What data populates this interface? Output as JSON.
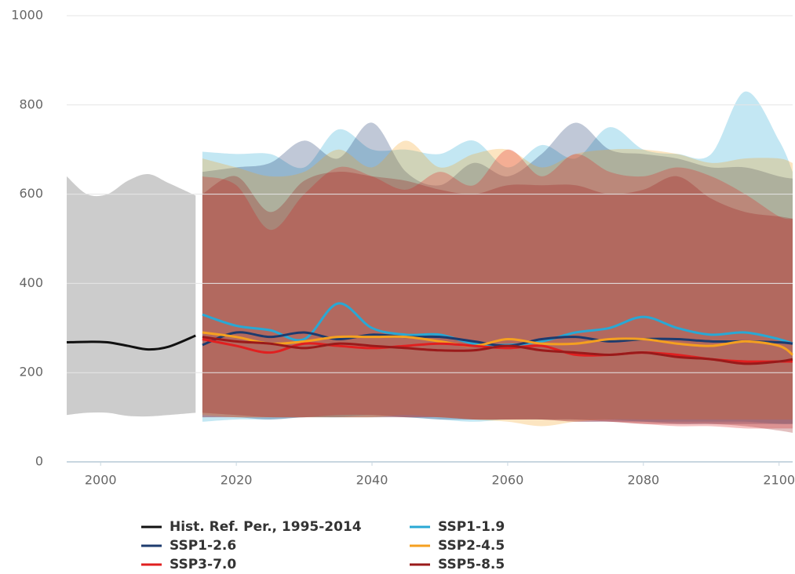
{
  "chart_data": {
    "type": "line",
    "xlim": [
      1995,
      2102
    ],
    "ylim": [
      0,
      1000
    ],
    "xticks": [
      2000,
      2020,
      2040,
      2060,
      2080,
      2100
    ],
    "yticks": [
      0,
      200,
      400,
      600,
      800,
      1000
    ],
    "grid": true,
    "legend": "bottom",
    "series": [
      {
        "name": "Hist. Ref. Per., 1995-2014",
        "color": "#111111",
        "band_color": "#b0b0b0",
        "x": [
          1995,
          1998,
          2001,
          2004,
          2007,
          2010,
          2014
        ],
        "values": [
          268,
          269,
          268,
          260,
          252,
          258,
          283
        ],
        "upper": [
          640,
          600,
          600,
          630,
          645,
          625,
          597
        ],
        "lower": [
          105,
          110,
          110,
          103,
          102,
          105,
          110
        ]
      },
      {
        "name": "SSP1-1.9",
        "color": "#29a8d4",
        "band_color": "#29a8d4",
        "x": [
          2015,
          2020,
          2025,
          2030,
          2035,
          2040,
          2045,
          2050,
          2055,
          2060,
          2065,
          2070,
          2075,
          2080,
          2085,
          2090,
          2095,
          2100,
          2102
        ],
        "values": [
          330,
          305,
          295,
          275,
          355,
          300,
          285,
          285,
          265,
          262,
          270,
          290,
          300,
          325,
          300,
          285,
          290,
          275,
          265
        ],
        "upper": [
          695,
          690,
          690,
          660,
          745,
          700,
          700,
          690,
          720,
          660,
          710,
          680,
          750,
          700,
          690,
          690,
          830,
          720,
          650
        ],
        "lower": [
          90,
          95,
          95,
          100,
          100,
          105,
          100,
          95,
          90,
          95,
          95,
          95,
          95,
          90,
          90,
          90,
          90,
          85,
          85
        ]
      },
      {
        "name": "SSP1-2.6",
        "color": "#1d3b6e",
        "band_color": "#1d3b6e",
        "x": [
          2015,
          2020,
          2025,
          2030,
          2035,
          2040,
          2045,
          2050,
          2055,
          2060,
          2065,
          2070,
          2075,
          2080,
          2085,
          2090,
          2095,
          2100,
          2102
        ],
        "values": [
          262,
          290,
          280,
          290,
          275,
          285,
          280,
          280,
          270,
          260,
          275,
          280,
          270,
          275,
          275,
          270,
          270,
          268,
          265
        ],
        "upper": [
          650,
          660,
          670,
          720,
          680,
          760,
          650,
          620,
          670,
          640,
          690,
          760,
          700,
          690,
          680,
          660,
          660,
          640,
          635
        ],
        "lower": [
          100,
          100,
          95,
          100,
          100,
          100,
          100,
          95,
          95,
          95,
          95,
          90,
          90,
          90,
          85,
          85,
          85,
          85,
          85
        ]
      },
      {
        "name": "SSP2-4.5",
        "color": "#f5a020",
        "band_color": "#f5a020",
        "x": [
          2015,
          2020,
          2025,
          2030,
          2035,
          2040,
          2045,
          2050,
          2055,
          2060,
          2065,
          2070,
          2075,
          2080,
          2085,
          2090,
          2095,
          2100,
          2102
        ],
        "values": [
          290,
          280,
          265,
          270,
          280,
          280,
          280,
          270,
          260,
          275,
          265,
          265,
          275,
          275,
          265,
          260,
          270,
          260,
          240
        ],
        "upper": [
          680,
          660,
          640,
          650,
          700,
          660,
          720,
          660,
          690,
          700,
          660,
          690,
          700,
          700,
          690,
          670,
          680,
          680,
          670
        ],
        "lower": [
          105,
          100,
          100,
          100,
          100,
          100,
          105,
          100,
          95,
          90,
          80,
          90,
          95,
          95,
          95,
          95,
          95,
          95,
          95
        ]
      },
      {
        "name": "SSP3-7.0",
        "color": "#e02020",
        "band_color": "#e02020",
        "x": [
          2015,
          2020,
          2025,
          2030,
          2035,
          2040,
          2045,
          2050,
          2055,
          2060,
          2065,
          2070,
          2075,
          2080,
          2085,
          2090,
          2095,
          2100,
          2102
        ],
        "values": [
          275,
          260,
          245,
          265,
          260,
          255,
          260,
          265,
          260,
          255,
          260,
          240,
          240,
          245,
          240,
          230,
          225,
          225,
          225
        ],
        "upper": [
          640,
          620,
          520,
          600,
          660,
          640,
          610,
          650,
          620,
          700,
          640,
          690,
          650,
          640,
          660,
          640,
          600,
          550,
          545
        ],
        "lower": [
          100,
          100,
          100,
          100,
          105,
          105,
          100,
          100,
          95,
          95,
          95,
          90,
          90,
          85,
          80,
          80,
          75,
          75,
          75
        ]
      },
      {
        "name": "SSP5-8.5",
        "color": "#9a1a1a",
        "band_color": "#9a1a1a",
        "x": [
          2015,
          2020,
          2025,
          2030,
          2035,
          2040,
          2045,
          2050,
          2055,
          2060,
          2065,
          2070,
          2075,
          2080,
          2085,
          2090,
          2095,
          2100,
          2102
        ],
        "values": [
          280,
          270,
          265,
          255,
          265,
          260,
          255,
          250,
          250,
          260,
          250,
          245,
          240,
          245,
          235,
          230,
          220,
          225,
          230
        ],
        "upper": [
          600,
          640,
          560,
          630,
          650,
          640,
          630,
          610,
          600,
          620,
          620,
          620,
          600,
          610,
          640,
          590,
          560,
          550,
          545
        ],
        "lower": [
          110,
          105,
          100,
          100,
          100,
          100,
          100,
          100,
          95,
          95,
          95,
          95,
          90,
          85,
          85,
          85,
          80,
          70,
          65
        ]
      }
    ]
  }
}
